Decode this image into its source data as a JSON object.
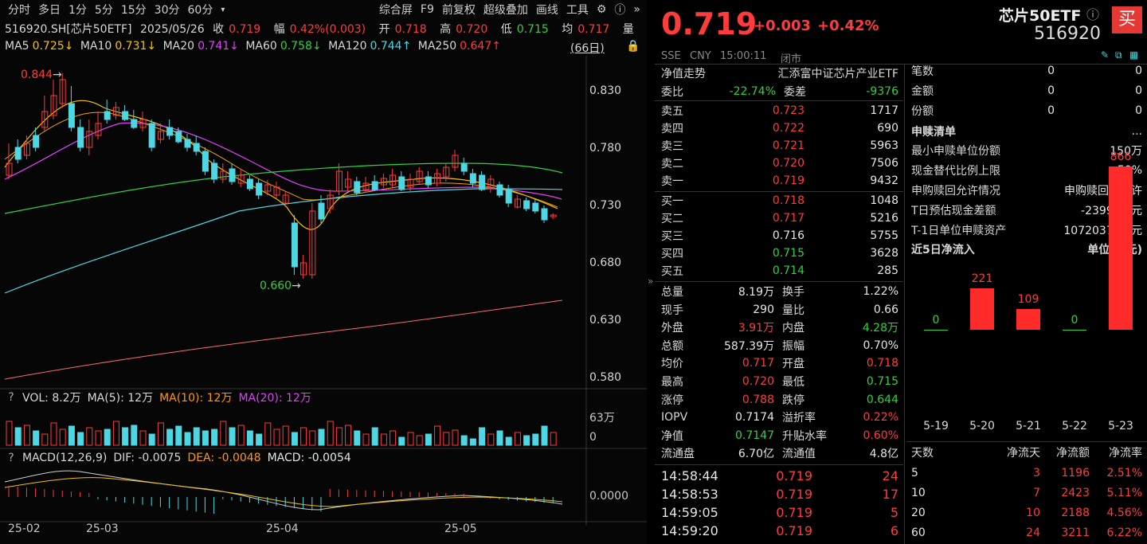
{
  "toolbar": {
    "tabs": [
      "分时",
      "多日",
      "1分",
      "5分",
      "15分",
      "30分",
      "60分"
    ],
    "more_arrow": "▾",
    "tools": [
      "综合屏",
      "F9",
      "前复权",
      "超级叠加",
      "画线",
      "工具"
    ]
  },
  "info": {
    "code": "516920.SH[芯片50ETF]",
    "date": "2025/05/26",
    "close_label": "收",
    "close": "0.719",
    "amp_label": "幅",
    "amp": "0.42%(0.003)",
    "open_label": "开",
    "open": "0.718",
    "high_label": "高",
    "high": "0.720",
    "low_label": "低",
    "low": "0.715",
    "avg_label": "均",
    "avg": "0.717",
    "vol_label": "量"
  },
  "ma": {
    "ma5_label": "MA5",
    "ma5": "0.725↓",
    "ma10_label": "MA10",
    "ma10": "0.731↓",
    "ma20_label": "MA20",
    "ma20": "0.741↓",
    "ma60_label": "MA60",
    "ma60": "0.758↓",
    "ma120_label": "MA120",
    "ma120": "0.744↑",
    "ma250_label": "MA250",
    "ma250": "0.647↑",
    "period": "(66日)"
  },
  "price_axis": [
    "0.830",
    "0.780",
    "0.730",
    "0.680",
    "0.630",
    "0.580"
  ],
  "annot": {
    "high": "0.844",
    "low": "0.660"
  },
  "vol": {
    "q": "?",
    "text": "VOL: 8.2万",
    "ma5": "MA(5): 12万",
    "ma10": "MA(10): 12万",
    "ma20": "MA(20): 12万",
    "axis_top": "63万",
    "axis_bot": "0"
  },
  "macd": {
    "q": "?",
    "text": "MACD(12,26,9)",
    "dif": "DIF: -0.0075",
    "dea": "DEA: -0.0048",
    "macd": "MACD: -0.0054",
    "axis": "0.0000"
  },
  "dates": [
    "25-02",
    "25-03",
    "25-04",
    "25-05"
  ],
  "colors": {
    "up": "#ff3b3b",
    "down": "#2fd23f",
    "bg": "#000000",
    "cyan": "#4dd6e3"
  },
  "header": {
    "price": "0.719",
    "chg": "+0.003",
    "pct": "+0.42%",
    "name": "芯片50ETF",
    "code": "516920",
    "buy": "买",
    "market": "SSE",
    "currency": "CNY",
    "time": "15:00:11",
    "status": "闭市"
  },
  "quote": {
    "nav_title": "净值走势",
    "etf_name": "汇添富中证芯片产业ETF",
    "wb_label": "委比",
    "wb": "-22.74%",
    "wc_label": "委差",
    "wc": "-9376",
    "asks": [
      {
        "l": "卖五",
        "p": "0.723",
        "v": "1717"
      },
      {
        "l": "卖四",
        "p": "0.722",
        "v": "690"
      },
      {
        "l": "卖三",
        "p": "0.721",
        "v": "5963"
      },
      {
        "l": "卖二",
        "p": "0.720",
        "v": "7506"
      },
      {
        "l": "卖一",
        "p": "0.719",
        "v": "9432"
      }
    ],
    "bids": [
      {
        "l": "买一",
        "p": "0.718",
        "v": "1048"
      },
      {
        "l": "买二",
        "p": "0.717",
        "v": "5216"
      },
      {
        "l": "买三",
        "p": "0.716",
        "v": "5755"
      },
      {
        "l": "买四",
        "p": "0.715",
        "v": "3628"
      },
      {
        "l": "买五",
        "p": "0.714",
        "v": "285"
      }
    ],
    "stats": [
      {
        "a": "总量",
        "av": "8.19万",
        "b": "换手",
        "bv": "1.22%"
      },
      {
        "a": "现手",
        "av": "290",
        "b": "量比",
        "bv": "0.66"
      },
      {
        "a": "外盘",
        "av": "3.91万",
        "b": "内盘",
        "bv": "4.28万"
      },
      {
        "a": "总额",
        "av": "587.39万",
        "b": "振幅",
        "bv": "0.70%"
      },
      {
        "a": "均价",
        "av": "0.717",
        "b": "开盘",
        "bv": "0.718"
      },
      {
        "a": "最高",
        "av": "0.720",
        "b": "最低",
        "bv": "0.715"
      },
      {
        "a": "涨停",
        "av": "0.788",
        "b": "跌停",
        "bv": "0.644"
      },
      {
        "a": "IOPV",
        "av": "0.7174",
        "b": "溢折率",
        "bv": "0.22%"
      },
      {
        "a": "净值",
        "av": "0.7147",
        "b": "升贴水率",
        "bv": "0.60%"
      },
      {
        "a": "流通盘",
        "av": "6.70亿",
        "b": "流通值",
        "bv": "4.8亿"
      }
    ],
    "ticks": [
      {
        "t": "14:58:44",
        "p": "0.719",
        "v": "24"
      },
      {
        "t": "14:58:53",
        "p": "0.719",
        "v": "17"
      },
      {
        "t": "14:59:05",
        "p": "0.719",
        "v": "5"
      },
      {
        "t": "14:59:20",
        "p": "0.719",
        "v": "6"
      }
    ]
  },
  "panel3": {
    "top": [
      {
        "l": "笔数",
        "a": "0",
        "b": "0"
      },
      {
        "l": "金额",
        "a": "0",
        "b": "0"
      },
      {
        "l": "份额",
        "a": "0",
        "b": "0"
      }
    ],
    "sr_title": "申赎清单",
    "sr_more": "...",
    "sr": [
      {
        "l": "最小申赎单位份额",
        "v": "150万"
      },
      {
        "l": "现金替代比例上限",
        "v": "50%"
      },
      {
        "l": "申购赎回允许情况",
        "v": "申购赎回皆允许"
      },
      {
        "l": "T日预估现金差额",
        "v": "-2399.26元"
      },
      {
        "l": "T-1日单位申赎资产",
        "v": "1072037.74元"
      }
    ],
    "flow_title": "近5日净流入",
    "flow_unit": "单位(万元)",
    "flow": {
      "dates": [
        "5-19",
        "5-20",
        "5-21",
        "5-22",
        "5-23"
      ],
      "values": [
        0,
        221,
        109,
        0,
        866
      ]
    },
    "tbl_head": [
      "天数",
      "净流天",
      "净流额",
      "净流率"
    ],
    "tbl": [
      {
        "d": "5",
        "n": "3",
        "a": "1196",
        "r": "2.51%"
      },
      {
        "d": "10",
        "n": "7",
        "a": "2423",
        "r": "5.11%"
      },
      {
        "d": "20",
        "n": "10",
        "a": "2188",
        "r": "4.56%"
      },
      {
        "d": "60",
        "n": "24",
        "a": "3211",
        "r": "6.22%"
      }
    ]
  }
}
